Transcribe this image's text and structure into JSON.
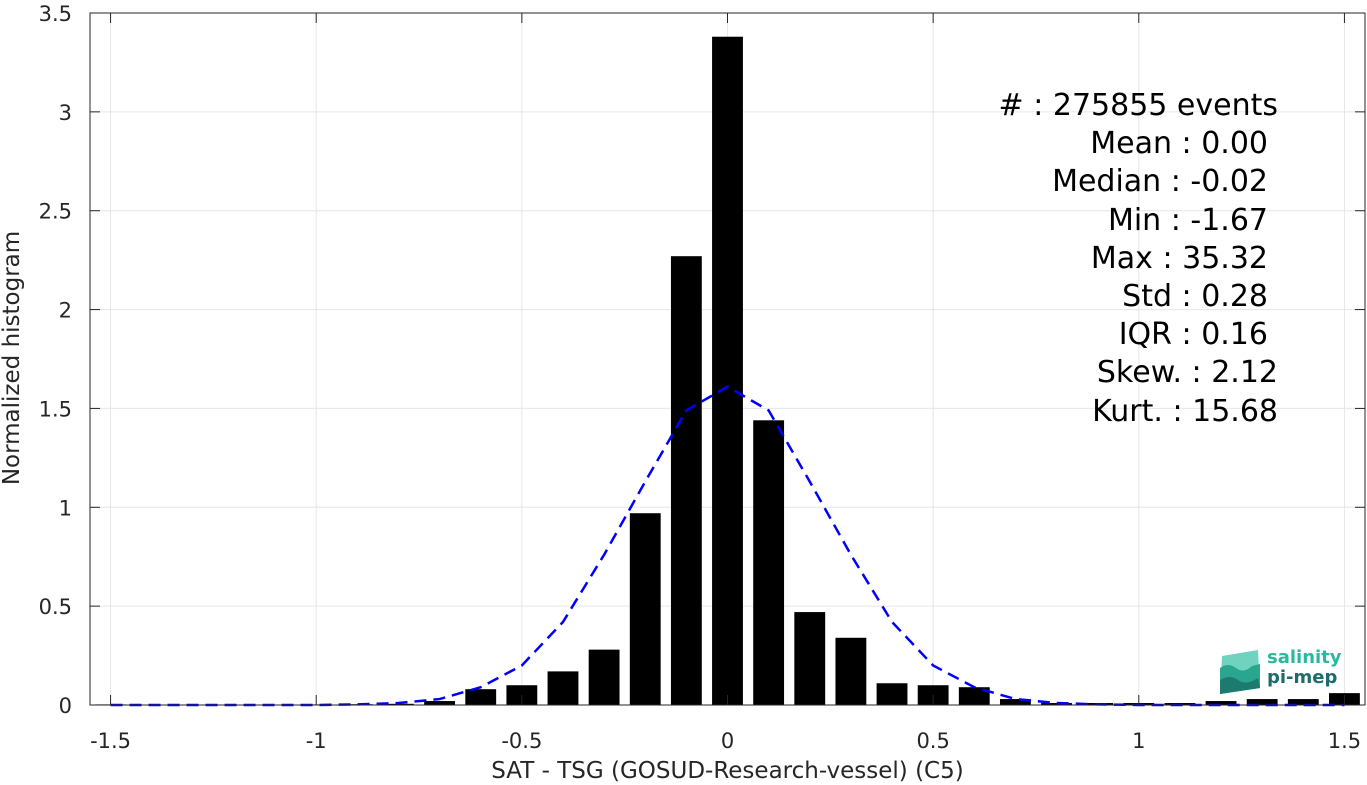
{
  "chart_data": {
    "type": "bar",
    "xlabel": "SAT - TSG (GOSUD-Research-vessel) (C5)",
    "ylabel": "Normalized histogram",
    "xlim": [
      -1.55,
      1.55
    ],
    "ylim": [
      0,
      3.5
    ],
    "xticks": [
      -1.5,
      -1,
      -0.5,
      0,
      0.5,
      1,
      1.5
    ],
    "xtick_labels": [
      "-1.5",
      "-1",
      "-0.5",
      "0",
      "0.5",
      "1",
      "1.5"
    ],
    "yticks": [
      0,
      0.5,
      1,
      1.5,
      2,
      2.5,
      3,
      3.5
    ],
    "ytick_labels": [
      "0",
      "0.5",
      "1",
      "1.5",
      "2",
      "2.5",
      "3",
      "3.5"
    ],
    "grid": true,
    "bars": {
      "color": "#000000",
      "x": [
        -1.5,
        -1.4,
        -1.3,
        -1.2,
        -1.1,
        -1.0,
        -0.9,
        -0.8,
        -0.7,
        -0.6,
        -0.5,
        -0.4,
        -0.3,
        -0.2,
        -0.1,
        0.0,
        0.1,
        0.2,
        0.3,
        0.4,
        0.5,
        0.6,
        0.7,
        0.8,
        0.9,
        1.0,
        1.1,
        1.2,
        1.3,
        1.4,
        1.5
      ],
      "values": [
        0.003,
        0.002,
        0.002,
        0.002,
        0.002,
        0.003,
        0.004,
        0.006,
        0.02,
        0.08,
        0.1,
        0.17,
        0.28,
        0.97,
        2.27,
        3.38,
        1.44,
        0.47,
        0.34,
        0.11,
        0.1,
        0.09,
        0.03,
        0.01,
        0.01,
        0.01,
        0.01,
        0.02,
        0.03,
        0.03,
        0.06
      ]
    },
    "fit_curve": {
      "style": "dashed",
      "color": "#0000ff",
      "x": [
        -1.5,
        -1.4,
        -1.3,
        -1.2,
        -1.1,
        -1.0,
        -0.9,
        -0.8,
        -0.7,
        -0.6,
        -0.5,
        -0.4,
        -0.3,
        -0.2,
        -0.1,
        0.0,
        0.1,
        0.2,
        0.3,
        0.4,
        0.5,
        0.6,
        0.7,
        0.8,
        0.9,
        1.0,
        1.1,
        1.2,
        1.3,
        1.4,
        1.5
      ],
      "y": [
        0.0,
        0.0,
        0.0,
        0.0,
        0.0,
        0.0,
        0.003,
        0.01,
        0.03,
        0.09,
        0.2,
        0.42,
        0.76,
        1.13,
        1.49,
        1.61,
        1.49,
        1.13,
        0.76,
        0.42,
        0.2,
        0.09,
        0.03,
        0.01,
        0.003,
        0.0,
        0.0,
        0.0,
        0.0,
        0.0,
        0.0
      ]
    },
    "stats": [
      {
        "label": "#  : 275855 events"
      },
      {
        "label": "Mean : 0.00"
      },
      {
        "label": "Median : -0.02"
      },
      {
        "label": "Min : -1.67"
      },
      {
        "label": "Max : 35.32"
      },
      {
        "label": "Std : 0.28"
      },
      {
        "label": "IQR : 0.16"
      },
      {
        "label": "Skew. : 2.12"
      },
      {
        "label": "Kurt. : 15.68"
      }
    ]
  },
  "logo": {
    "line1": "salinity",
    "line2": "pi-mep",
    "color1": "#2bb8a0",
    "color2": "#1f6b6b"
  }
}
